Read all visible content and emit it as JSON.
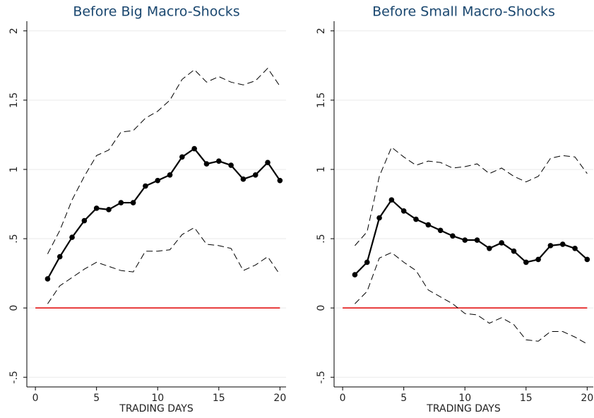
{
  "chart_data": [
    {
      "type": "line",
      "title": "Before Big Macro-Shocks",
      "xlabel": "TRADING DAYS",
      "x": [
        1,
        2,
        3,
        4,
        5,
        6,
        7,
        8,
        9,
        10,
        11,
        12,
        13,
        14,
        15,
        16,
        17,
        18,
        19,
        20
      ],
      "series": [
        {
          "color": "#000000",
          "style": "solid",
          "markers": true,
          "values": [
            0.21,
            0.37,
            0.51,
            0.63,
            0.72,
            0.71,
            0.76,
            0.76,
            0.88,
            0.92,
            0.96,
            1.09,
            1.15,
            1.04,
            1.06,
            1.03,
            0.93,
            0.96,
            1.05,
            0.92
          ]
        },
        {
          "color": "#000000",
          "style": "dashed",
          "markers": false,
          "values": [
            0.39,
            0.56,
            0.78,
            0.95,
            1.1,
            1.14,
            1.27,
            1.28,
            1.37,
            1.42,
            1.5,
            1.65,
            1.72,
            1.63,
            1.67,
            1.63,
            1.61,
            1.64,
            1.73,
            1.6
          ]
        },
        {
          "color": "#000000",
          "style": "dashed",
          "markers": false,
          "values": [
            0.03,
            0.16,
            0.22,
            0.28,
            0.33,
            0.3,
            0.27,
            0.26,
            0.41,
            0.41,
            0.42,
            0.53,
            0.58,
            0.46,
            0.45,
            0.43,
            0.27,
            0.31,
            0.37,
            0.24
          ]
        }
      ],
      "hline": 0,
      "hline_color": "#e00000",
      "hline_x": [
        0,
        20
      ],
      "xlim": [
        -0.7,
        20.5
      ],
      "xticks": [
        0,
        5,
        10,
        15,
        20
      ],
      "ylim": [
        -0.57,
        2.07
      ],
      "yticks": [
        {
          "value": -0.5,
          "label": "-.5"
        },
        0,
        {
          "value": 0.5,
          "label": ".5"
        },
        1,
        1.5,
        2
      ],
      "grid": true
    },
    {
      "type": "line",
      "title": "Before Small Macro-Shocks",
      "xlabel": "TRADING DAYS",
      "x": [
        1,
        2,
        3,
        4,
        5,
        6,
        7,
        8,
        9,
        10,
        11,
        12,
        13,
        14,
        15,
        16,
        17,
        18,
        19,
        20
      ],
      "series": [
        {
          "color": "#000000",
          "style": "solid",
          "markers": true,
          "values": [
            0.24,
            0.33,
            0.65,
            0.78,
            0.7,
            0.64,
            0.6,
            0.56,
            0.52,
            0.49,
            0.49,
            0.43,
            0.47,
            0.41,
            0.33,
            0.35,
            0.45,
            0.46,
            0.43,
            0.35
          ]
        },
        {
          "color": "#000000",
          "style": "dashed",
          "markers": false,
          "values": [
            0.45,
            0.55,
            0.95,
            1.16,
            1.09,
            1.03,
            1.06,
            1.05,
            1.01,
            1.02,
            1.04,
            0.97,
            1.01,
            0.95,
            0.91,
            0.95,
            1.08,
            1.1,
            1.09,
            0.97
          ]
        },
        {
          "color": "#000000",
          "style": "dashed",
          "markers": false,
          "values": [
            0.03,
            0.12,
            0.36,
            0.4,
            0.33,
            0.27,
            0.13,
            0.08,
            0.03,
            -0.04,
            -0.05,
            -0.11,
            -0.07,
            -0.12,
            -0.23,
            -0.24,
            -0.17,
            -0.17,
            -0.21,
            -0.26
          ]
        }
      ],
      "hline": 0,
      "hline_color": "#e00000",
      "hline_x": [
        0,
        20
      ],
      "xlim": [
        -0.7,
        20.5
      ],
      "xticks": [
        0,
        5,
        10,
        15,
        20
      ],
      "ylim": [
        -0.57,
        2.07
      ],
      "yticks": [
        {
          "value": -0.5,
          "label": "-.5"
        },
        0,
        {
          "value": 0.5,
          "label": ".5"
        },
        1,
        1.5,
        2
      ],
      "grid": true
    }
  ]
}
